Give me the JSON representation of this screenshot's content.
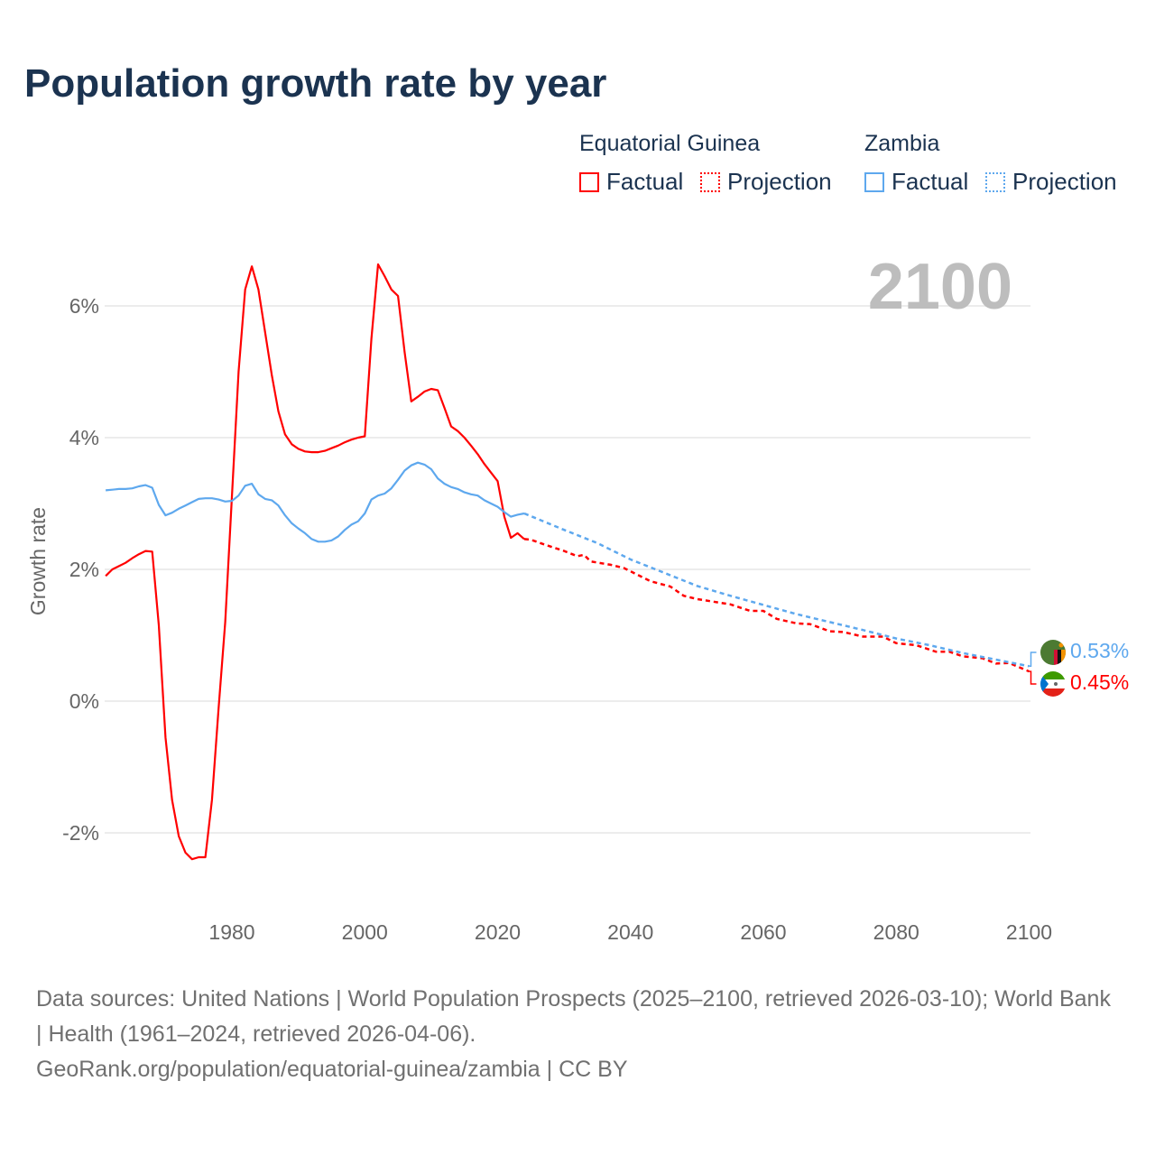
{
  "title": "Population growth rate by year",
  "legend": {
    "groups": [
      {
        "name": "Equatorial Guinea",
        "factual": "Factual",
        "projection": "Projection",
        "color": "#ff0000"
      },
      {
        "name": "Zambia",
        "factual": "Factual",
        "projection": "Projection",
        "color": "#5ea8ee"
      }
    ]
  },
  "source": {
    "line1": "Data sources: United Nations | World Population Prospects (2025–2100, retrieved 2026-03-10); World Bank | Health (1961–2024, retrieved 2026-04-06).",
    "line2": "GeoRank.org/population/equatorial-guinea/zambia | CC BY"
  },
  "chart_data": {
    "type": "line",
    "title": "Population growth rate by year",
    "ylabel": "Growth rate",
    "xlabel": "",
    "year_label": "2100",
    "xlim": [
      1961,
      2100
    ],
    "ylim": [
      -3,
      6.5
    ],
    "xticks": [
      1980,
      2000,
      2020,
      2040,
      2060,
      2080,
      2100
    ],
    "yticks": [
      {
        "v": 6,
        "label": "6%"
      },
      {
        "v": 4,
        "label": "4%"
      },
      {
        "v": 2,
        "label": "2%"
      },
      {
        "v": 0,
        "label": "0%"
      },
      {
        "v": -2,
        "label": "-2%"
      }
    ],
    "grid": true,
    "series": [
      {
        "name": "Equatorial Guinea",
        "color": "#ff0000",
        "end_label": "0.45%",
        "factual_start": 1961,
        "factual": [
          1.9,
          2.0,
          2.05,
          2.1,
          2.17,
          2.23,
          2.28,
          2.27,
          1.15,
          -0.55,
          -1.5,
          -2.05,
          -2.3,
          -2.4,
          -2.37,
          -2.37,
          -1.5,
          -0.1,
          1.2,
          3.1,
          5.0,
          6.25,
          6.6,
          6.25,
          5.6,
          4.95,
          4.4,
          4.05,
          3.9,
          3.83,
          3.79,
          3.78,
          3.78,
          3.8,
          3.84,
          3.88,
          3.93,
          3.97,
          4.0,
          4.02,
          5.5,
          6.63,
          6.45,
          6.25,
          6.15,
          5.3,
          4.55,
          4.62,
          4.7,
          4.74,
          4.72,
          4.45,
          4.17,
          4.1,
          4.0,
          3.88,
          3.75,
          3.6,
          3.47,
          3.34,
          2.8,
          2.48,
          2.55,
          2.46
        ],
        "projection": [
          [
            2024,
            2.46
          ],
          [
            2025,
            2.45
          ],
          [
            2027,
            2.38
          ],
          [
            2030,
            2.28
          ],
          [
            2032,
            2.2
          ],
          [
            2033,
            2.22
          ],
          [
            2034,
            2.12
          ],
          [
            2037,
            2.07
          ],
          [
            2039,
            2.02
          ],
          [
            2041,
            1.92
          ],
          [
            2043,
            1.82
          ],
          [
            2046,
            1.74
          ],
          [
            2048,
            1.6
          ],
          [
            2050,
            1.55
          ],
          [
            2055,
            1.47
          ],
          [
            2058,
            1.37
          ],
          [
            2060,
            1.37
          ],
          [
            2062,
            1.25
          ],
          [
            2065,
            1.18
          ],
          [
            2067,
            1.17
          ],
          [
            2070,
            1.06
          ],
          [
            2072,
            1.05
          ],
          [
            2075,
            0.98
          ],
          [
            2078,
            0.98
          ],
          [
            2080,
            0.88
          ],
          [
            2083,
            0.85
          ],
          [
            2086,
            0.75
          ],
          [
            2088,
            0.75
          ],
          [
            2090,
            0.68
          ],
          [
            2093,
            0.65
          ],
          [
            2095,
            0.57
          ],
          [
            2097,
            0.58
          ],
          [
            2100,
            0.45
          ]
        ]
      },
      {
        "name": "Zambia",
        "color": "#5ea8ee",
        "end_label": "0.53%",
        "factual_start": 1961,
        "factual": [
          3.2,
          3.21,
          3.22,
          3.22,
          3.23,
          3.26,
          3.28,
          3.24,
          2.98,
          2.82,
          2.86,
          2.92,
          2.97,
          3.02,
          3.07,
          3.08,
          3.08,
          3.06,
          3.03,
          3.04,
          3.12,
          3.27,
          3.3,
          3.14,
          3.07,
          3.05,
          2.97,
          2.82,
          2.7,
          2.62,
          2.55,
          2.46,
          2.42,
          2.42,
          2.44,
          2.5,
          2.6,
          2.68,
          2.73,
          2.85,
          3.06,
          3.12,
          3.15,
          3.23,
          3.36,
          3.5,
          3.58,
          3.62,
          3.59,
          3.52,
          3.38,
          3.3,
          3.25,
          3.22,
          3.17,
          3.14,
          3.12,
          3.05,
          3.0,
          2.95,
          2.87,
          2.8,
          2.83,
          2.85
        ],
        "projection": [
          [
            2024,
            2.85
          ],
          [
            2030,
            2.6
          ],
          [
            2035,
            2.4
          ],
          [
            2040,
            2.15
          ],
          [
            2045,
            1.95
          ],
          [
            2050,
            1.75
          ],
          [
            2055,
            1.6
          ],
          [
            2060,
            1.46
          ],
          [
            2065,
            1.32
          ],
          [
            2070,
            1.2
          ],
          [
            2075,
            1.08
          ],
          [
            2080,
            0.95
          ],
          [
            2085,
            0.85
          ],
          [
            2090,
            0.73
          ],
          [
            2095,
            0.63
          ],
          [
            2100,
            0.53
          ]
        ]
      }
    ]
  }
}
